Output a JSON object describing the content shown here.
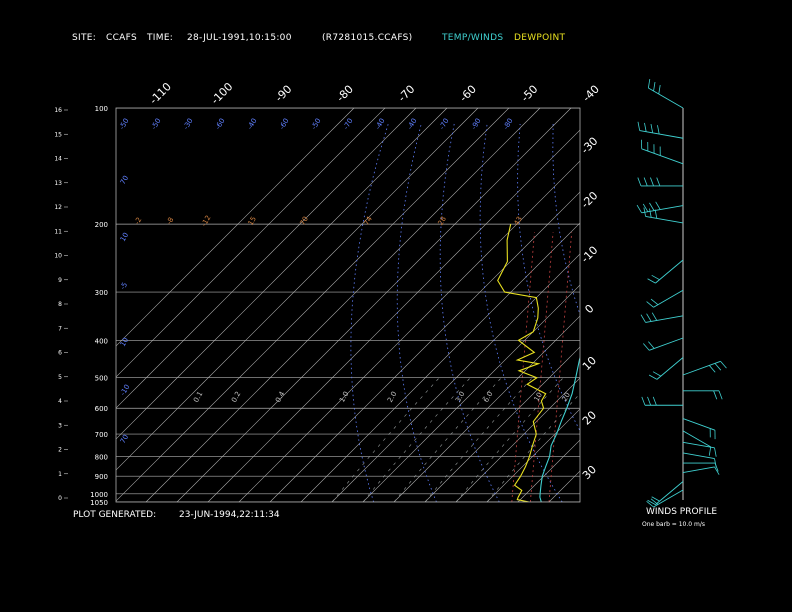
{
  "header": {
    "site_label": "SITE:",
    "site": "CCAFS",
    "time_label": "TIME:",
    "time": "28-JUL-1991,10:15:00",
    "file": "(R7281015.CCAFS)",
    "legend_temp": "TEMP/WINDS",
    "legend_dew": "DEWPOINT"
  },
  "footer": {
    "generated_label": "PLOT GENERATED:",
    "generated": "23-JUN-1994,22:11:34",
    "winds_title": "WINDS PROFILE",
    "winds_note": "One barb = 10.0 m/s"
  },
  "colors": {
    "background": "#000000",
    "grid": "#b0b0b0",
    "temperature": "#3fd0d0",
    "dewpoint": "#e8e020",
    "dry_adiabat": "#6080ff",
    "moist_adiabat": "#c04040",
    "mixing_ratio": "#d08040"
  },
  "chart_data": {
    "type": "line",
    "title": "",
    "pressure_ticks_mb": [
      "100",
      "200",
      "300",
      "400",
      "500",
      "600",
      "700",
      "800",
      "900",
      "1000",
      "1050"
    ],
    "height_ticks_km": [
      "0",
      "1",
      "2",
      "3",
      "4",
      "5",
      "6",
      "7",
      "8",
      "9",
      "10",
      "11",
      "12",
      "13",
      "14",
      "15",
      "16"
    ],
    "top_temp_ticks_c": [
      "-110",
      "-100",
      "-90",
      "-80",
      "-70",
      "-60",
      "-50",
      "-40"
    ],
    "right_temp_ticks_c": [
      "-30",
      "-20",
      "-10",
      "0",
      "10",
      "20",
      "30"
    ],
    "theta_labels": [
      "-50",
      "-50",
      "-30",
      "-60",
      "-40",
      "-60",
      "-50",
      "-70",
      "-40",
      "-40",
      "-70",
      "-90",
      "-80"
    ],
    "mixing_labels": [
      "-2",
      "-8",
      "-12",
      "15",
      "70",
      "74",
      "28",
      "43"
    ],
    "low_labels": [
      "0.1",
      "0.2",
      "0.4",
      "1.0",
      "2.0",
      "3.0",
      "6.0",
      "10",
      "20"
    ],
    "theta_left_labels": [
      "70",
      "10",
      "-5",
      "10",
      "-10",
      "70"
    ],
    "series": [
      {
        "name": "TEMP/WINDS",
        "points": [
          [
            1050,
            27.5
          ],
          [
            1020,
            25.5
          ],
          [
            1000,
            24.5
          ],
          [
            950,
            22
          ],
          [
            900,
            19.5
          ],
          [
            850,
            17.5
          ],
          [
            800,
            15.5
          ],
          [
            750,
            12.5
          ],
          [
            700,
            10.5
          ],
          [
            650,
            8
          ],
          [
            600,
            5.5
          ],
          [
            550,
            2.5
          ],
          [
            500,
            -1.5
          ],
          [
            450,
            -6
          ],
          [
            400,
            -10.5
          ],
          [
            350,
            -16
          ],
          [
            300,
            -23
          ],
          [
            250,
            -32
          ],
          [
            200,
            -43
          ],
          [
            175,
            -50
          ],
          [
            150,
            -58
          ],
          [
            130,
            -66
          ],
          [
            115,
            -71
          ],
          [
            100,
            -69
          ]
        ]
      },
      {
        "name": "DEWPOINT",
        "points": [
          [
            1050,
            23.5
          ],
          [
            1035,
            19
          ],
          [
            1020,
            18.5
          ],
          [
            1000,
            18
          ],
          [
            980,
            17.5
          ],
          [
            950,
            13.5
          ],
          [
            900,
            12.5
          ],
          [
            850,
            11
          ],
          [
            800,
            9
          ],
          [
            750,
            6.5
          ],
          [
            700,
            4
          ],
          [
            650,
            -1
          ],
          [
            600,
            -2
          ],
          [
            575,
            -5
          ],
          [
            550,
            -6
          ],
          [
            520,
            -15
          ],
          [
            500,
            -14
          ],
          [
            480,
            -22
          ],
          [
            460,
            -18
          ],
          [
            450,
            -26
          ],
          [
            430,
            -23
          ],
          [
            400,
            -32
          ],
          [
            380,
            -30
          ],
          [
            350,
            -33
          ],
          [
            330,
            -36
          ],
          [
            310,
            -40
          ],
          [
            300,
            -52
          ],
          [
            280,
            -58
          ],
          [
            250,
            -61
          ],
          [
            220,
            -68
          ],
          [
            200,
            -72
          ]
        ]
      }
    ],
    "wind_profile": {
      "barb_speed_ms": "10.0",
      "levels_mb": [
        100,
        120,
        140,
        160,
        180,
        200,
        250,
        300,
        350,
        400,
        450,
        500,
        550,
        600,
        650,
        700,
        750,
        800,
        850,
        900,
        950,
        1000
      ],
      "directions_deg": [
        300,
        280,
        290,
        270,
        260,
        280,
        230,
        240,
        260,
        250,
        230,
        70,
        90,
        270,
        110,
        120,
        100,
        100,
        90,
        80,
        230,
        240
      ],
      "speeds_ms": [
        30,
        40,
        40,
        35,
        35,
        25,
        20,
        15,
        25,
        20,
        15,
        30,
        20,
        25,
        15,
        10,
        10,
        10,
        10,
        10,
        20,
        15
      ]
    }
  }
}
